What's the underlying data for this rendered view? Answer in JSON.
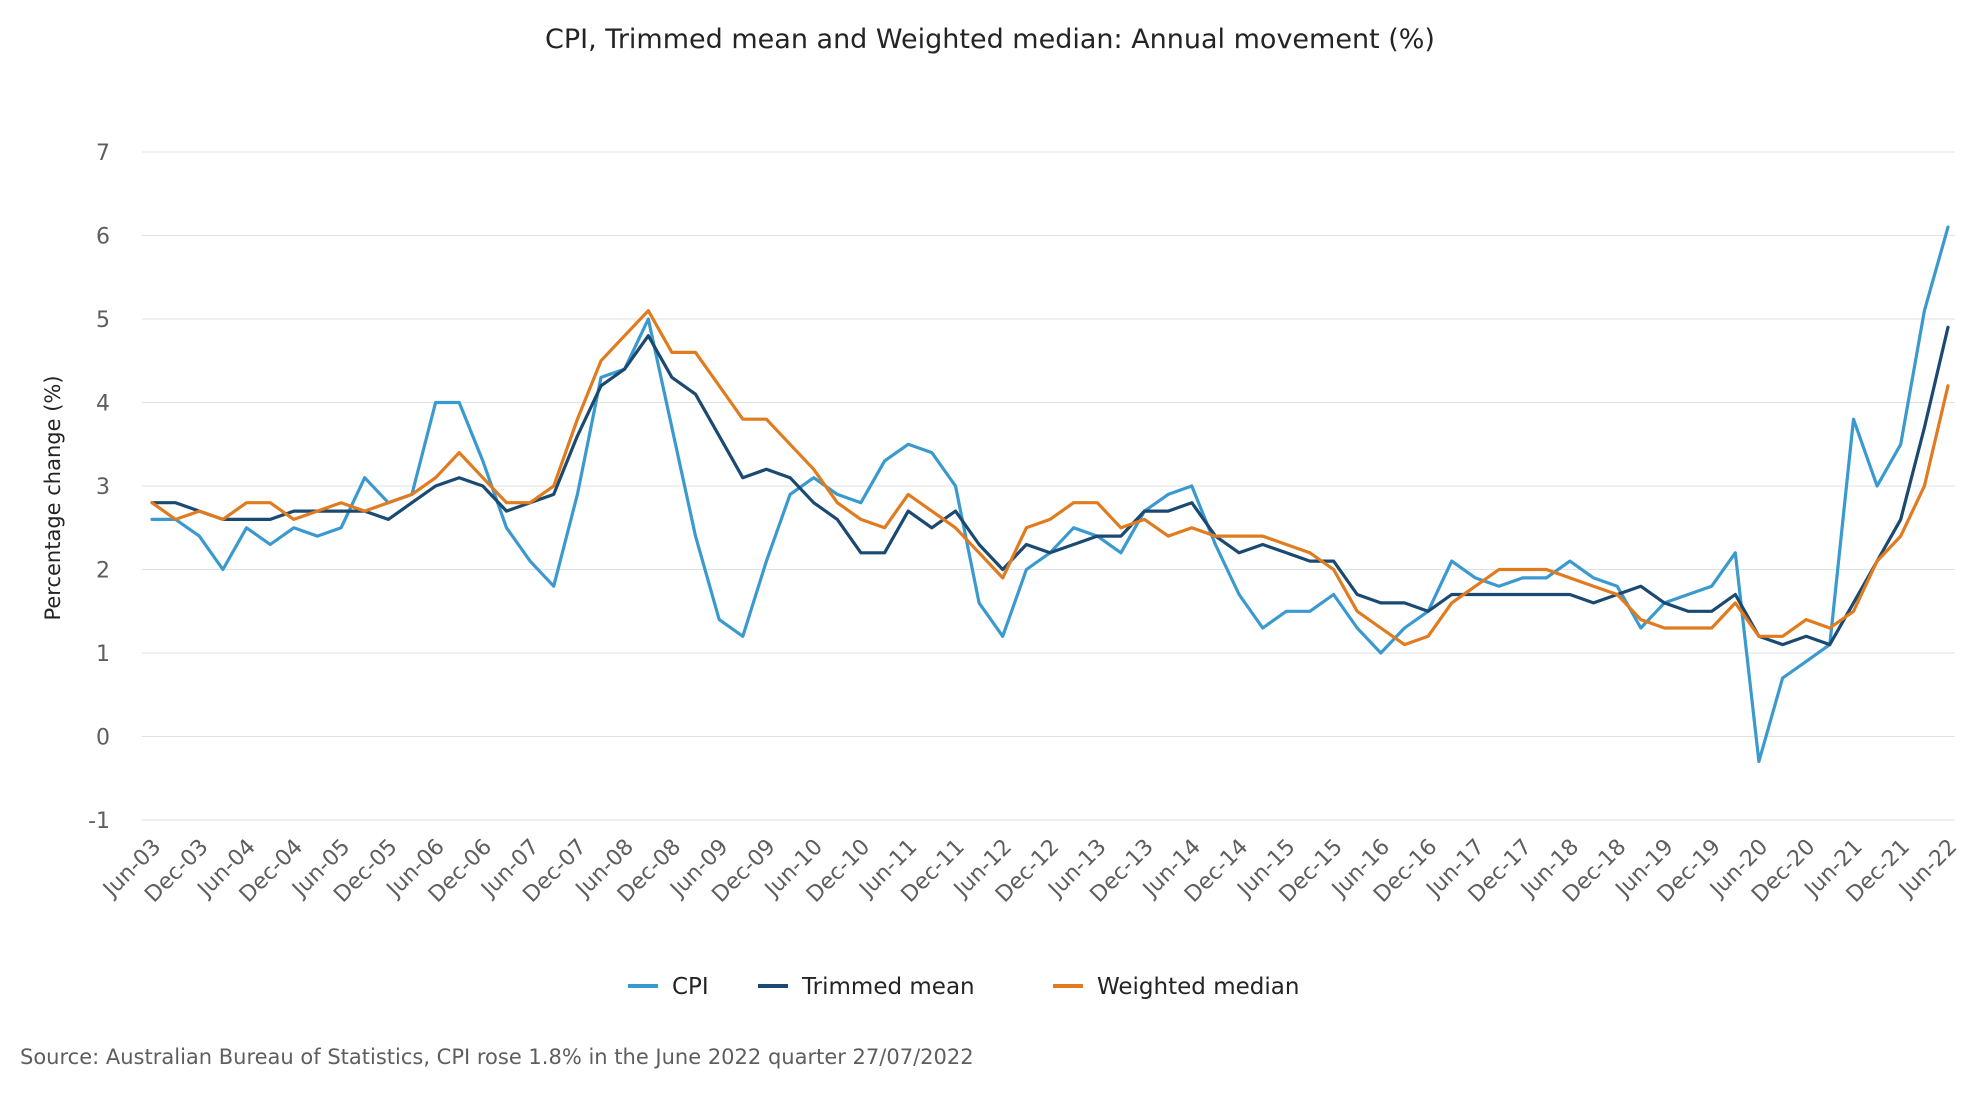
{
  "chart_data": {
    "type": "line",
    "title": "CPI, Trimmed mean and Weighted median: Annual movement (%)",
    "xlabel": "",
    "ylabel": "Percentage change (%)",
    "ylim": [
      -1,
      7
    ],
    "yticks": [
      7,
      6,
      5,
      4,
      3,
      2,
      1,
      0,
      -1
    ],
    "grid": true,
    "legend": "bottom",
    "categories": [
      "Jun-03",
      "Sep-03",
      "Dec-03",
      "Mar-04",
      "Jun-04",
      "Sep-04",
      "Dec-04",
      "Mar-05",
      "Jun-05",
      "Sep-05",
      "Dec-05",
      "Mar-06",
      "Jun-06",
      "Sep-06",
      "Dec-06",
      "Mar-07",
      "Jun-07",
      "Sep-07",
      "Dec-07",
      "Mar-08",
      "Jun-08",
      "Sep-08",
      "Dec-08",
      "Mar-09",
      "Jun-09",
      "Sep-09",
      "Dec-09",
      "Mar-10",
      "Jun-10",
      "Sep-10",
      "Dec-10",
      "Mar-11",
      "Jun-11",
      "Sep-11",
      "Dec-11",
      "Mar-12",
      "Jun-12",
      "Sep-12",
      "Dec-12",
      "Mar-13",
      "Jun-13",
      "Sep-13",
      "Dec-13",
      "Mar-14",
      "Jun-14",
      "Sep-14",
      "Dec-14",
      "Mar-15",
      "Jun-15",
      "Sep-15",
      "Dec-15",
      "Mar-16",
      "Jun-16",
      "Sep-16",
      "Dec-16",
      "Mar-17",
      "Jun-17",
      "Sep-17",
      "Dec-17",
      "Mar-18",
      "Jun-18",
      "Sep-18",
      "Dec-18",
      "Mar-19",
      "Jun-19",
      "Sep-19",
      "Dec-19",
      "Mar-20",
      "Jun-20",
      "Sep-20",
      "Dec-20",
      "Mar-21",
      "Jun-21",
      "Sep-21",
      "Dec-21",
      "Mar-22",
      "Jun-22"
    ],
    "tick_labels": [
      "Jun-03",
      "Dec-03",
      "Jun-04",
      "Dec-04",
      "Jun-05",
      "Dec-05",
      "Jun-06",
      "Dec-06",
      "Jun-07",
      "Dec-07",
      "Jun-08",
      "Dec-08",
      "Jun-09",
      "Dec-09",
      "Jun-10",
      "Dec-10",
      "Jun-11",
      "Dec-11",
      "Jun-12",
      "Dec-12",
      "Jun-13",
      "Dec-13",
      "Jun-14",
      "Dec-14",
      "Jun-15",
      "Dec-15",
      "Jun-16",
      "Dec-16",
      "Jun-17",
      "Dec-17",
      "Jun-18",
      "Dec-18",
      "Jun-19",
      "Dec-19",
      "Jun-20",
      "Dec-20",
      "Jun-21",
      "Dec-21",
      "Jun-22"
    ],
    "series": [
      {
        "name": "CPI",
        "color": "#3a9ad0",
        "values": [
          2.6,
          2.6,
          2.4,
          2.0,
          2.5,
          2.3,
          2.5,
          2.4,
          2.5,
          3.1,
          2.8,
          2.9,
          4.0,
          4.0,
          3.3,
          2.5,
          2.1,
          1.8,
          2.9,
          4.3,
          4.4,
          5.0,
          3.7,
          2.4,
          1.4,
          1.2,
          2.1,
          2.9,
          3.1,
          2.9,
          2.8,
          3.3,
          3.5,
          3.4,
          3.0,
          1.6,
          1.2,
          2.0,
          2.2,
          2.5,
          2.4,
          2.2,
          2.7,
          2.9,
          3.0,
          2.3,
          1.7,
          1.3,
          1.5,
          1.5,
          1.7,
          1.3,
          1.0,
          1.3,
          1.5,
          2.1,
          1.9,
          1.8,
          1.9,
          1.9,
          2.1,
          1.9,
          1.8,
          1.3,
          1.6,
          1.7,
          1.8,
          2.2,
          -0.3,
          0.7,
          0.9,
          1.1,
          3.8,
          3.0,
          3.5,
          5.1,
          6.1
        ]
      },
      {
        "name": "Trimmed mean",
        "color": "#1a4971",
        "values": [
          2.8,
          2.8,
          2.7,
          2.6,
          2.6,
          2.6,
          2.7,
          2.7,
          2.7,
          2.7,
          2.6,
          2.8,
          3.0,
          3.1,
          3.0,
          2.7,
          2.8,
          2.9,
          3.6,
          4.2,
          4.4,
          4.8,
          4.3,
          4.1,
          3.6,
          3.1,
          3.2,
          3.1,
          2.8,
          2.6,
          2.2,
          2.2,
          2.7,
          2.5,
          2.7,
          2.3,
          2.0,
          2.3,
          2.2,
          2.3,
          2.4,
          2.4,
          2.7,
          2.7,
          2.8,
          2.4,
          2.2,
          2.3,
          2.2,
          2.1,
          2.1,
          1.7,
          1.6,
          1.6,
          1.5,
          1.7,
          1.7,
          1.7,
          1.7,
          1.7,
          1.7,
          1.6,
          1.7,
          1.8,
          1.6,
          1.5,
          1.5,
          1.7,
          1.2,
          1.1,
          1.2,
          1.1,
          1.6,
          2.1,
          2.6,
          3.7,
          4.9
        ]
      },
      {
        "name": "Weighted median",
        "color": "#e07b1f",
        "values": [
          2.8,
          2.6,
          2.7,
          2.6,
          2.8,
          2.8,
          2.6,
          2.7,
          2.8,
          2.7,
          2.8,
          2.9,
          3.1,
          3.4,
          3.1,
          2.8,
          2.8,
          3.0,
          3.8,
          4.5,
          4.8,
          5.1,
          4.6,
          4.6,
          4.2,
          3.8,
          3.8,
          3.5,
          3.2,
          2.8,
          2.6,
          2.5,
          2.9,
          2.7,
          2.5,
          2.2,
          1.9,
          2.5,
          2.6,
          2.8,
          2.8,
          2.5,
          2.6,
          2.4,
          2.5,
          2.4,
          2.4,
          2.4,
          2.3,
          2.2,
          2.0,
          1.5,
          1.3,
          1.1,
          1.2,
          1.6,
          1.8,
          2.0,
          2.0,
          2.0,
          1.9,
          1.8,
          1.7,
          1.4,
          1.3,
          1.3,
          1.3,
          1.6,
          1.2,
          1.2,
          1.4,
          1.3,
          1.5,
          2.1,
          2.4,
          3.0,
          4.2
        ]
      }
    ]
  },
  "footer": {
    "source": "Source: Australian Bureau of Statistics, CPI rose 1.8% in the June 2022 quarter 27/07/2022"
  }
}
